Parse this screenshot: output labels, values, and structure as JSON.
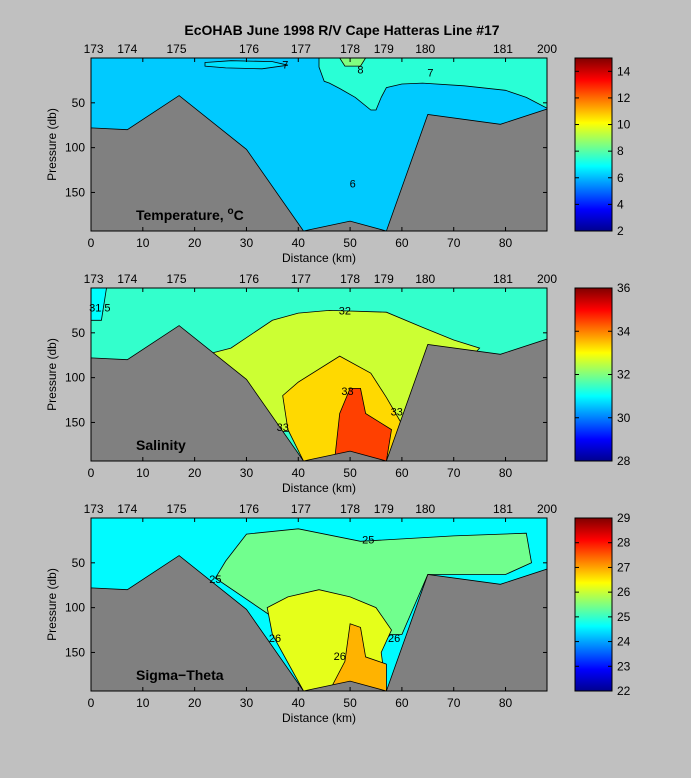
{
  "title": "EcOHAB   June 1998   R/V Cape Hatteras   Line #17",
  "chart_data": [
    {
      "type": "contour",
      "name": "Temperature",
      "panel_label": "Temperature, °C",
      "xlabel": "Distance (km)",
      "ylabel": "Pressure (db)",
      "xlim": [
        0,
        88
      ],
      "ylim": [
        0,
        193
      ],
      "y_reversed": true,
      "xticks": [
        "0",
        "10",
        "20",
        "30",
        "40",
        "50",
        "60",
        "70",
        "80"
      ],
      "yticks": [
        "50",
        "100",
        "150"
      ],
      "stations": [
        {
          "label": "173",
          "x": 0.5
        },
        {
          "label": "174",
          "x": 7
        },
        {
          "label": "175",
          "x": 16.5
        },
        {
          "label": "176",
          "x": 30.5
        },
        {
          "label": "177",
          "x": 40.5
        },
        {
          "label": "178",
          "x": 50
        },
        {
          "label": "179",
          "x": 56.5
        },
        {
          "label": "180",
          "x": 64.5
        },
        {
          "label": "181",
          "x": 79.5
        },
        {
          "label": "200",
          "x": 88
        }
      ],
      "bottom_profile": [
        [
          0,
          78
        ],
        [
          7,
          80
        ],
        [
          17,
          42
        ],
        [
          30,
          102
        ],
        [
          41,
          193
        ],
        [
          50,
          182
        ],
        [
          57,
          193
        ],
        [
          65,
          63
        ],
        [
          79,
          74
        ],
        [
          88,
          57
        ]
      ],
      "regions": [
        {
          "value": 6.2,
          "points": [
            [
              0,
              0
            ],
            [
              88,
              0
            ],
            [
              88,
              193
            ],
            [
              0,
              193
            ]
          ]
        },
        {
          "value": 7.4,
          "points": [
            [
              44,
              0
            ],
            [
              88,
              0
            ],
            [
              88,
              56
            ],
            [
              84,
              44
            ],
            [
              80,
              36
            ],
            [
              72,
              31
            ],
            [
              64,
              28
            ],
            [
              60,
              29
            ],
            [
              57,
              33
            ],
            [
              56,
              44
            ],
            [
              55,
              58
            ],
            [
              54,
              58
            ],
            [
              51,
              44
            ],
            [
              48,
              34
            ],
            [
              46,
              28
            ],
            [
              45,
              26
            ],
            [
              44,
              10
            ]
          ]
        },
        {
          "value": 8.5,
          "points": [
            [
              48,
              0
            ],
            [
              53,
              0
            ],
            [
              52,
              9
            ],
            [
              49,
              9
            ]
          ]
        },
        {
          "value": 6.5,
          "points": [
            [
              22,
              5
            ],
            [
              27,
              3
            ],
            [
              35,
              4
            ],
            [
              38,
              8
            ],
            [
              33,
              12
            ],
            [
              26,
              11
            ],
            [
              22,
              9
            ]
          ]
        }
      ],
      "contour_labels": [
        {
          "text": "7",
          "x": 37.5,
          "y": 7
        },
        {
          "text": "7",
          "x": 65.5,
          "y": 16
        },
        {
          "text": "8",
          "x": 52,
          "y": 13
        },
        {
          "text": "6",
          "x": 50.5,
          "y": 140
        }
      ],
      "colorbar": {
        "min": 2,
        "max": 15,
        "ticks": [
          "4",
          "6",
          "8",
          "10",
          "12",
          "14"
        ],
        "tick_values": [
          4,
          6,
          8,
          10,
          12,
          14
        ],
        "edge_labels": [
          "2",
          ""
        ]
      }
    },
    {
      "type": "contour",
      "name": "Salinity",
      "panel_label": "Salinity",
      "xlabel": "Distance (km)",
      "ylabel": "Pressure (db)",
      "xlim": [
        0,
        88
      ],
      "ylim": [
        0,
        193
      ],
      "y_reversed": true,
      "xticks": [
        "0",
        "10",
        "20",
        "30",
        "40",
        "50",
        "60",
        "70",
        "80"
      ],
      "yticks": [
        "50",
        "100",
        "150"
      ],
      "stations": [
        {
          "label": "173",
          "x": 0.5
        },
        {
          "label": "174",
          "x": 7
        },
        {
          "label": "175",
          "x": 16.5
        },
        {
          "label": "176",
          "x": 30.5
        },
        {
          "label": "177",
          "x": 40.5
        },
        {
          "label": "178",
          "x": 50
        },
        {
          "label": "179",
          "x": 56.5
        },
        {
          "label": "180",
          "x": 64.5
        },
        {
          "label": "181",
          "x": 79.5
        },
        {
          "label": "200",
          "x": 88
        }
      ],
      "bottom_profile": [
        [
          0,
          78
        ],
        [
          7,
          80
        ],
        [
          17,
          42
        ],
        [
          30,
          102
        ],
        [
          41,
          193
        ],
        [
          50,
          182
        ],
        [
          57,
          193
        ],
        [
          65,
          63
        ],
        [
          79,
          74
        ],
        [
          88,
          57
        ]
      ],
      "regions": [
        {
          "value": 31.4,
          "points": [
            [
              0,
              0
            ],
            [
              88,
              0
            ],
            [
              88,
              193
            ],
            [
              0,
              193
            ]
          ]
        },
        {
          "value": 32.6,
          "points": [
            [
              17,
              82
            ],
            [
              27,
              67
            ],
            [
              35,
              36
            ],
            [
              40,
              28
            ],
            [
              46,
              25
            ],
            [
              57,
              27
            ],
            [
              64,
              44
            ],
            [
              70,
              58
            ],
            [
              75,
              67
            ],
            [
              60,
              160
            ],
            [
              30,
              160
            ],
            [
              17,
              82
            ]
          ]
        },
        {
          "value": 33.3,
          "points": [
            [
              38,
              158
            ],
            [
              37,
              120
            ],
            [
              40,
              105
            ],
            [
              48,
              76
            ],
            [
              54,
              95
            ],
            [
              57,
              122
            ],
            [
              60,
              152
            ],
            [
              57,
              193
            ],
            [
              41,
              193
            ]
          ]
        },
        {
          "value": 34.5,
          "points": [
            [
              47,
              193
            ],
            [
              48,
              140
            ],
            [
              50,
              112
            ],
            [
              52,
              112
            ],
            [
              53,
              140
            ],
            [
              58,
              158
            ],
            [
              57,
              193
            ]
          ]
        },
        {
          "value": 31.0,
          "points": [
            [
              0,
              0
            ],
            [
              3,
              0
            ],
            [
              2,
              36
            ],
            [
              0,
              36
            ]
          ]
        }
      ],
      "contour_labels": [
        {
          "text": "32",
          "x": 49,
          "y": 25
        },
        {
          "text": "31.5",
          "x": 1.7,
          "y": 22
        },
        {
          "text": "33",
          "x": 49.5,
          "y": 115
        },
        {
          "text": "33",
          "x": 59,
          "y": 138
        },
        {
          "text": "33",
          "x": 37,
          "y": 155
        }
      ],
      "colorbar": {
        "min": 28,
        "max": 36,
        "ticks": [
          "30",
          "32",
          "34"
        ],
        "tick_values": [
          30,
          32,
          34
        ],
        "edge_labels": [
          "28",
          "36"
        ]
      }
    },
    {
      "type": "contour",
      "name": "Sigma-Theta",
      "panel_label": "Sigma−Theta",
      "xlabel": "Distance (km)",
      "ylabel": "Pressure (db)",
      "xlim": [
        0,
        88
      ],
      "ylim": [
        0,
        193
      ],
      "y_reversed": true,
      "xticks": [
        "0",
        "10",
        "20",
        "30",
        "40",
        "50",
        "60",
        "70",
        "80"
      ],
      "yticks": [
        "50",
        "100",
        "150"
      ],
      "stations": [
        {
          "label": "173",
          "x": 0.5
        },
        {
          "label": "174",
          "x": 7
        },
        {
          "label": "175",
          "x": 16.5
        },
        {
          "label": "176",
          "x": 30.5
        },
        {
          "label": "177",
          "x": 40.5
        },
        {
          "label": "178",
          "x": 50
        },
        {
          "label": "179",
          "x": 56.5
        },
        {
          "label": "180",
          "x": 64.5
        },
        {
          "label": "181",
          "x": 79.5
        },
        {
          "label": "200",
          "x": 88
        }
      ],
      "bottom_profile": [
        [
          0,
          78
        ],
        [
          7,
          80
        ],
        [
          17,
          42
        ],
        [
          30,
          102
        ],
        [
          41,
          193
        ],
        [
          50,
          182
        ],
        [
          57,
          193
        ],
        [
          65,
          63
        ],
        [
          79,
          74
        ],
        [
          88,
          57
        ]
      ],
      "regions": [
        {
          "value": 24.6,
          "points": [
            [
              0,
              0
            ],
            [
              88,
              0
            ],
            [
              88,
              193
            ],
            [
              0,
              193
            ]
          ]
        },
        {
          "value": 25.4,
          "points": [
            [
              24,
              67
            ],
            [
              26,
              48
            ],
            [
              30,
              18
            ],
            [
              40,
              12
            ],
            [
              52,
              26
            ],
            [
              70,
              20
            ],
            [
              84,
              17
            ],
            [
              85,
              50
            ],
            [
              80,
              63
            ],
            [
              65,
              63
            ],
            [
              60,
              130
            ],
            [
              40,
              130
            ],
            [
              24,
              67
            ]
          ]
        },
        {
          "value": 26.2,
          "points": [
            [
              35,
              130
            ],
            [
              34,
              100
            ],
            [
              38,
              88
            ],
            [
              44,
              80
            ],
            [
              50,
              88
            ],
            [
              55,
              100
            ],
            [
              58,
              125
            ],
            [
              56,
              150
            ],
            [
              57,
              193
            ],
            [
              41,
              193
            ]
          ]
        },
        {
          "value": 26.9,
          "points": [
            [
              46,
              193
            ],
            [
              49,
              160
            ],
            [
              50,
              118
            ],
            [
              52,
              122
            ],
            [
              53,
              155
            ],
            [
              57,
              163
            ],
            [
              57,
              193
            ]
          ]
        }
      ],
      "contour_labels": [
        {
          "text": "25",
          "x": 53.5,
          "y": 24
        },
        {
          "text": "25",
          "x": 24,
          "y": 68
        },
        {
          "text": "26",
          "x": 35.5,
          "y": 134
        },
        {
          "text": "26",
          "x": 58.5,
          "y": 134
        },
        {
          "text": "26",
          "x": 48,
          "y": 154
        }
      ],
      "colorbar": {
        "min": 22,
        "max": 29,
        "ticks": [
          "23",
          "24",
          "25",
          "26",
          "27",
          "28"
        ],
        "tick_values": [
          23,
          24,
          25,
          26,
          27,
          28
        ],
        "edge_labels": [
          "22",
          "29"
        ]
      }
    }
  ]
}
